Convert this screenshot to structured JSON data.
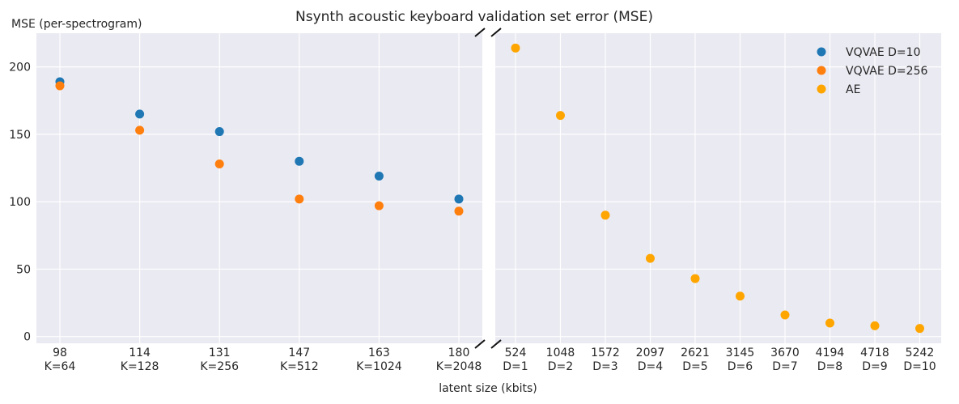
{
  "chart_data": {
    "type": "scatter",
    "title": "Nsynth acoustic keyboard validation set error (MSE)",
    "xlabel": "latent size (kbits)",
    "ylabel": "MSE (per-spectrogram)",
    "ylim": [
      -5,
      225
    ],
    "yticks": [
      0,
      50,
      100,
      150,
      200
    ],
    "grid": true,
    "broken_x_axis": true,
    "legend_position": "top-right",
    "panels": [
      {
        "categories": [
          "98\nK=64",
          "114\nK=128",
          "131\nK=256",
          "147\nK=512",
          "163\nK=1024",
          "180\nK=2048"
        ],
        "series": [
          {
            "name": "VQVAE D=10",
            "color": "#1f77b4",
            "values": [
              189,
              165,
              152,
              130,
              119,
              102
            ]
          },
          {
            "name": "VQVAE D=256",
            "color": "#ff7f0e",
            "values": [
              186,
              153,
              128,
              102,
              97,
              93
            ]
          }
        ]
      },
      {
        "categories": [
          "524\nD=1",
          "1048\nD=2",
          "1572\nD=3",
          "2097\nD=4",
          "2621\nD=5",
          "3145\nD=6",
          "3670\nD=7",
          "4194\nD=8",
          "4718\nD=9",
          "5242\nD=10"
        ],
        "series": [
          {
            "name": "AE",
            "color": "#ffa500",
            "values": [
              214,
              164,
              90,
              58,
              43,
              30,
              16,
              10,
              8,
              6
            ]
          }
        ]
      }
    ]
  }
}
